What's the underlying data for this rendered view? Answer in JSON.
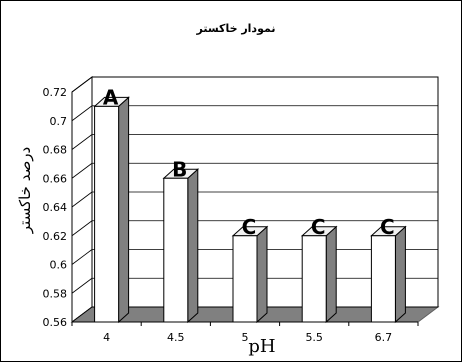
{
  "chart_data": {
    "type": "bar",
    "title": "نمودار خاکستر",
    "xlabel": "pH",
    "ylabel": "درصد خاکستر",
    "categories": [
      "4",
      "4.5",
      "5",
      "5.5",
      "6.7"
    ],
    "values": [
      0.71,
      0.66,
      0.62,
      0.62,
      0.62
    ],
    "group_labels": [
      "A",
      "B",
      "C",
      "C",
      "C"
    ],
    "ylim": [
      0.56,
      0.72
    ],
    "yticks": [
      "0.56",
      "0.58",
      "0.6",
      "0.62",
      "0.64",
      "0.66",
      "0.68",
      "0.7",
      "0.72"
    ],
    "grid": true,
    "legend": "none",
    "colors": {
      "bar_front": "#ffffff",
      "bar_side": "#808080",
      "floor": "#808080",
      "grid": "#000000"
    }
  }
}
